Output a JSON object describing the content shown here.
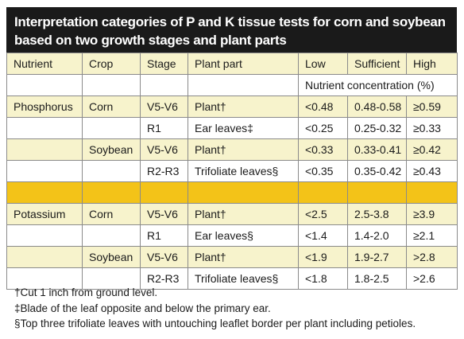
{
  "title": {
    "line1": "Interpretation categories of P and K tissue tests for corn and soybean",
    "line2": "based on two growth stages and plant parts"
  },
  "header": [
    "Nutrient",
    "Crop",
    "Stage",
    "Plant part",
    "Low",
    "Sufficient",
    "High"
  ],
  "units_label": "Nutrient concentration (%)",
  "rows": [
    {
      "nutrient": "Phosphorus",
      "crop": "Corn",
      "stage": "V5-V6",
      "part": "Plant†",
      "low": "<0.48",
      "sufficient": "0.48-0.58",
      "high": "≥0.59",
      "shade": true
    },
    {
      "nutrient": "",
      "crop": "",
      "stage": "R1",
      "part": "Ear leaves‡",
      "low": "<0.25",
      "sufficient": "0.25-0.32",
      "high": "≥0.33",
      "shade": false
    },
    {
      "nutrient": "",
      "crop": "Soybean",
      "stage": "V5-V6",
      "part": "Plant†",
      "low": "<0.33",
      "sufficient": "0.33-0.41",
      "high": "≥0.42",
      "shade": true
    },
    {
      "nutrient": "",
      "crop": "",
      "stage": "R2-R3",
      "part": "Trifoliate leaves§",
      "low": "<0.35",
      "sufficient": "0.35-0.42",
      "high": "≥0.43",
      "shade": false
    },
    {
      "nutrient": "Potassium",
      "crop": "Corn",
      "stage": "V5-V6",
      "part": "Plant†",
      "low": "<2.5",
      "sufficient": "2.5-3.8",
      "high": "≥3.9",
      "shade": true
    },
    {
      "nutrient": "",
      "crop": "",
      "stage": "R1",
      "part": "Ear leaves§",
      "low": "<1.4",
      "sufficient": "1.4-2.0",
      "high": "≥2.1",
      "shade": false
    },
    {
      "nutrient": "",
      "crop": "Soybean",
      "stage": "V5-V6",
      "part": "Plant†",
      "low": "<1.9",
      "sufficient": "1.9-2.7",
      "high": ">2.8",
      "shade": true
    },
    {
      "nutrient": "",
      "crop": "",
      "stage": "R2-R3",
      "part": "Trifoliate leaves§",
      "low": "<1.8",
      "sufficient": "1.8-2.5",
      "high": ">2.6",
      "shade": false
    }
  ],
  "footnotes": [
    "†Cut 1 inch from ground level.",
    "‡Blade of the leaf opposite and below the primary ear.",
    "§Top three trifoliate leaves with untouching leaflet border per plant including petioles."
  ],
  "colors": {
    "title_bg": "#1a1a1a",
    "shade": "#f7f3cc",
    "separator": "#f3c318",
    "border": "#8a8a8a"
  }
}
